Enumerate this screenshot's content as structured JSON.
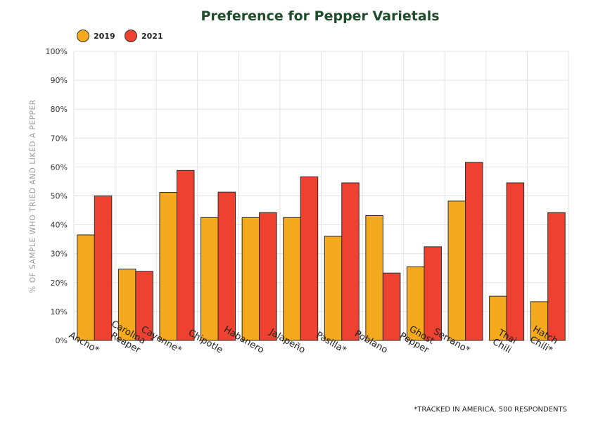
{
  "chart_data": {
    "type": "bar",
    "title": "Preference for Pepper Varietals",
    "ylabel": "% OF SAMPLE WHO TRIED AND LIKED A PEPPER",
    "xlabel": "",
    "ylim": [
      0,
      100
    ],
    "yticks": [
      "0%",
      "10%",
      "20%",
      "30%",
      "40%",
      "50%",
      "60%",
      "70%",
      "80%",
      "90%",
      "100%"
    ],
    "categories": [
      [
        "Ancho*"
      ],
      [
        "Carolina",
        "Reaper"
      ],
      [
        "Cayenne*"
      ],
      [
        "Chipotle"
      ],
      [
        "Habanero"
      ],
      [
        "Jalapeño"
      ],
      [
        "Pasilla*"
      ],
      [
        "Poblano"
      ],
      [
        "Ghost",
        "Pepper"
      ],
      [
        "Serrano*"
      ],
      [
        "Thai",
        "Chili"
      ],
      [
        "Hatch",
        "Chili*"
      ]
    ],
    "series": [
      {
        "name": "2019",
        "color": "#f5a91c",
        "values": [
          36.5,
          24.7,
          51.2,
          42.5,
          42.5,
          42.5,
          36,
          43.2,
          25.5,
          48.2,
          15.3,
          13.4
        ]
      },
      {
        "name": "2021",
        "color": "#ef4130",
        "values": [
          50,
          23.9,
          58.8,
          51.3,
          44.2,
          56.6,
          54.5,
          23.3,
          32.4,
          61.6,
          54.5,
          44.2
        ]
      }
    ],
    "grid": true,
    "legend": "top-left",
    "footnote": "*TRACKED IN AMERICA, 500 RESPONDENTS",
    "title_color": "#1f4d2b"
  }
}
